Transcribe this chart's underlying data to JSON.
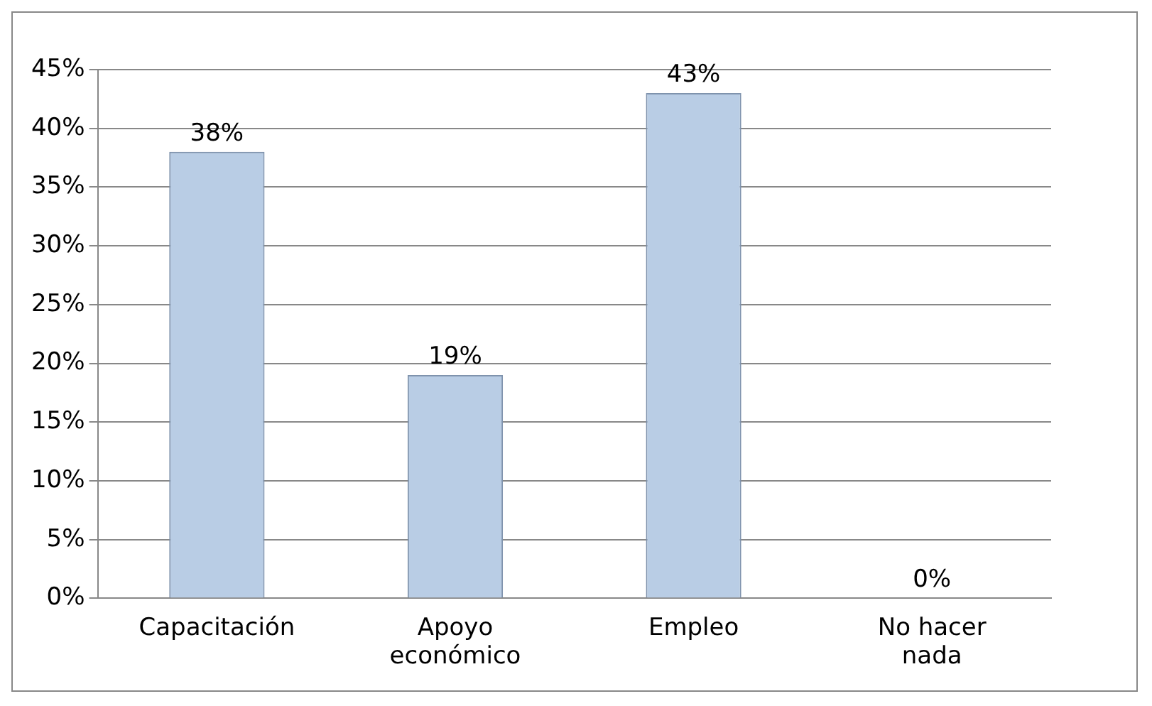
{
  "chart_data": {
    "type": "bar",
    "categories": [
      "Capacitación",
      "Apoyo económico",
      "Empleo",
      "No hacer nada"
    ],
    "values": [
      38,
      19,
      43,
      0
    ],
    "color": "#b9cde5",
    "ylim": [
      0,
      45
    ],
    "yticks": [
      {
        "value": 0,
        "label": "0%"
      },
      {
        "value": 5,
        "label": "5%"
      },
      {
        "value": 10,
        "label": "10%"
      },
      {
        "value": 15,
        "label": "15%"
      },
      {
        "value": 20,
        "label": "20%"
      },
      {
        "value": 25,
        "label": "25%"
      },
      {
        "value": 30,
        "label": "30%"
      },
      {
        "value": 35,
        "label": "35%"
      },
      {
        "value": 40,
        "label": "40%"
      },
      {
        "value": 45,
        "label": "45%"
      }
    ],
    "value_labels": [
      "38%",
      "19%",
      "43%",
      "0%"
    ],
    "grid": "y",
    "legend": false
  }
}
